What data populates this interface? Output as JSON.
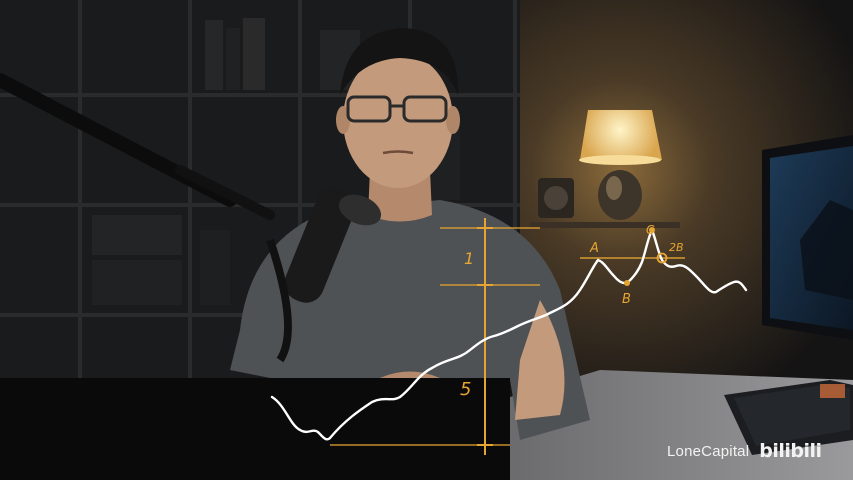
{
  "overlay": {
    "accent_color": "#e6a532",
    "wave_label_1": "1",
    "wave_label_5": "5",
    "point_a": "A",
    "point_b": "B",
    "point_c": "C",
    "point_2b": "2B"
  },
  "watermark": {
    "channel_name": "LoneCapital",
    "platform_logo": "bilibili"
  }
}
